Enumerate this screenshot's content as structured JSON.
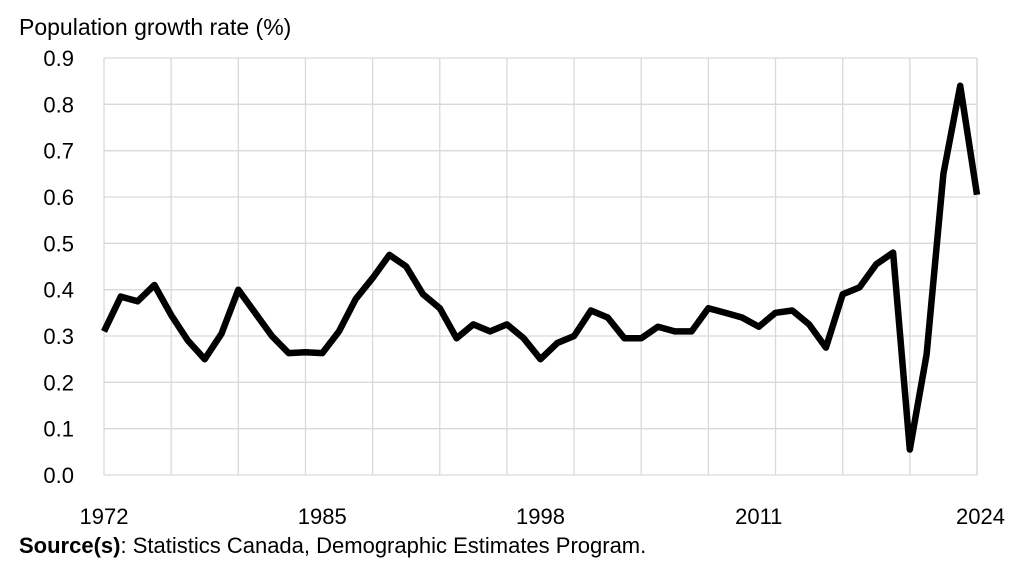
{
  "chart_data": {
    "type": "line",
    "title": "",
    "ylabel": "Population growth rate (%)",
    "xlabel": "",
    "x_range": [
      1972,
      2024
    ],
    "ylim": [
      0,
      0.9
    ],
    "y_ticks": [
      "0.0",
      "0.1",
      "0.2",
      "0.3",
      "0.4",
      "0.5",
      "0.6",
      "0.7",
      "0.8",
      "0.9"
    ],
    "x_tick_labels": [
      "1972",
      "1985",
      "1998",
      "2011",
      "2024"
    ],
    "grid": true,
    "legend": "none",
    "series": [
      {
        "color": "#000000",
        "points": [
          [
            1972,
            0.31
          ],
          [
            1973,
            0.385
          ],
          [
            1974,
            0.375
          ],
          [
            1975,
            0.41
          ],
          [
            1976,
            0.345
          ],
          [
            1977,
            0.29
          ],
          [
            1978,
            0.25
          ],
          [
            1979,
            0.305
          ],
          [
            1980,
            0.4
          ],
          [
            1981,
            0.35
          ],
          [
            1982,
            0.3
          ],
          [
            1983,
            0.263
          ],
          [
            1984,
            0.265
          ],
          [
            1985,
            0.263
          ],
          [
            1986,
            0.31
          ],
          [
            1987,
            0.38
          ],
          [
            1988,
            0.425
          ],
          [
            1989,
            0.475
          ],
          [
            1990,
            0.45
          ],
          [
            1991,
            0.39
          ],
          [
            1992,
            0.36
          ],
          [
            1993,
            0.295
          ],
          [
            1994,
            0.325
          ],
          [
            1995,
            0.31
          ],
          [
            1996,
            0.325
          ],
          [
            1997,
            0.295
          ],
          [
            1998,
            0.25
          ],
          [
            1999,
            0.285
          ],
          [
            2000,
            0.3
          ],
          [
            2001,
            0.355
          ],
          [
            2002,
            0.34
          ],
          [
            2003,
            0.295
          ],
          [
            2004,
            0.295
          ],
          [
            2005,
            0.32
          ],
          [
            2006,
            0.31
          ],
          [
            2007,
            0.31
          ],
          [
            2008,
            0.36
          ],
          [
            2009,
            0.35
          ],
          [
            2010,
            0.34
          ],
          [
            2011,
            0.32
          ],
          [
            2012,
            0.35
          ],
          [
            2013,
            0.355
          ],
          [
            2014,
            0.325
          ],
          [
            2015,
            0.275
          ],
          [
            2016,
            0.39
          ],
          [
            2017,
            0.405
          ],
          [
            2018,
            0.455
          ],
          [
            2019,
            0.48
          ],
          [
            2020,
            0.055
          ],
          [
            2021,
            0.26
          ],
          [
            2022,
            0.65
          ],
          [
            2023,
            0.84
          ],
          [
            2024,
            0.605
          ]
        ]
      }
    ]
  },
  "source": {
    "label": "Source(s)",
    "text": ": Statistics Canada, Demographic Estimates Program."
  }
}
